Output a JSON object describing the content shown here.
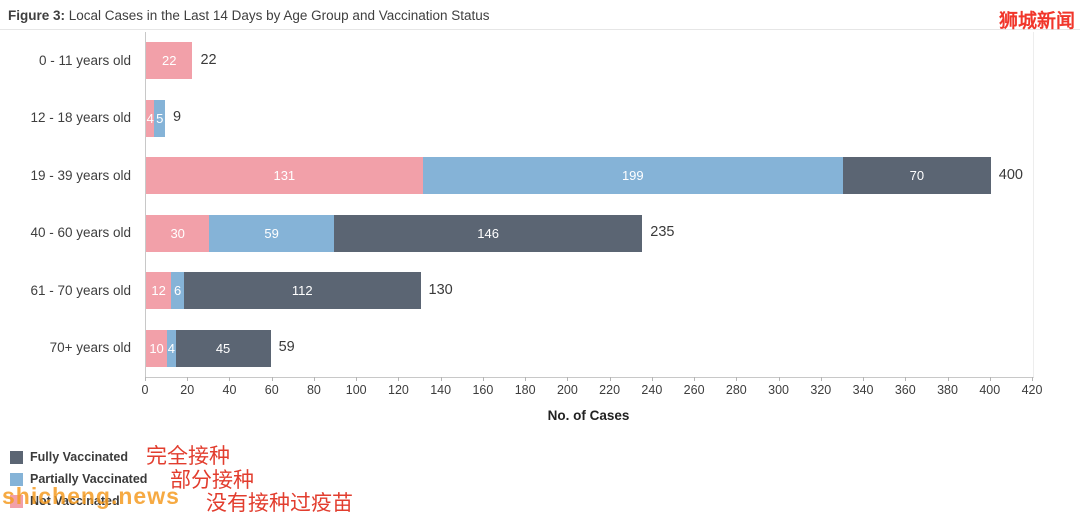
{
  "header": {
    "title_prefix": "Figure 3:",
    "title_rest": " Local Cases in the Last 14 Days by Age Group and Vaccination Status"
  },
  "watermarks": {
    "top_right": "狮城新闻",
    "bottom_left": "shicheng.news"
  },
  "annotations": {
    "fully": "完全接种",
    "partially": "部分接种",
    "unvaccinated": "没有接种过疫苗"
  },
  "legend": {
    "items": [
      {
        "label": "Fully Vaccinated",
        "color": "#5b6573"
      },
      {
        "label": "Partially Vaccinated",
        "color": "#85b3d7"
      },
      {
        "label": "Not Vaccinated",
        "color": "#f2a0a9"
      }
    ]
  },
  "chart_data": {
    "type": "bar",
    "orientation": "horizontal",
    "title": "Local Cases in the Last 14 Days by Age Group and Vaccination Status",
    "categories": [
      "0 - 11 years old",
      "12 - 18 years old",
      "19 - 39 years old",
      "40 - 60 years old",
      "61 - 70 years old",
      "70+ years old"
    ],
    "series": [
      {
        "name": "Not Vaccinated",
        "color": "#f2a0a9",
        "values": [
          22,
          4,
          131,
          30,
          12,
          10
        ]
      },
      {
        "name": "Partially Vaccinated",
        "color": "#85b3d7",
        "values": [
          0,
          5,
          199,
          59,
          6,
          4
        ]
      },
      {
        "name": "Fully Vaccinated",
        "color": "#5b6573",
        "values": [
          0,
          0,
          70,
          146,
          112,
          45
        ]
      }
    ],
    "totals": [
      22,
      9,
      400,
      235,
      130,
      59
    ],
    "xlabel": "No. of Cases",
    "xlim": [
      0,
      420
    ],
    "xtick_step": 20,
    "grid": false,
    "legend_position": "bottom-left"
  }
}
